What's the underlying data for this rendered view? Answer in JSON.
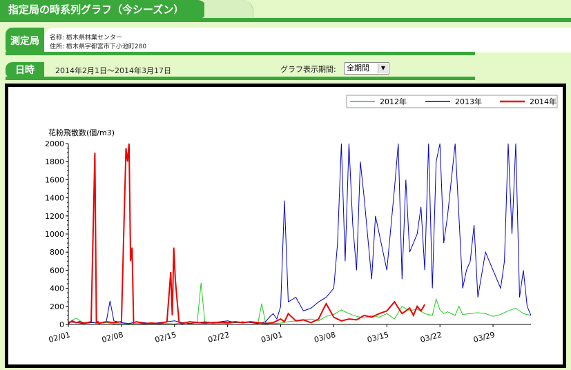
{
  "header": {
    "title": "指定局の時系列グラフ（今シーズン）"
  },
  "station": {
    "tab_label": "測定局",
    "name": "名称: 栃木県林業センター",
    "address": "住所: 栃木県宇都宮市下小池町280"
  },
  "date": {
    "tab_label": "日時",
    "range": "2014年2月1日〜2014年3月17日"
  },
  "period": {
    "label": "グラフ表示期間:",
    "selected": "全期間"
  },
  "colors": {
    "accent": "#3aa83a",
    "s2012": "#22cc22",
    "s2013": "#0000cc",
    "s2014": "#ee0000"
  },
  "chart_data": {
    "type": "line",
    "title": "",
    "ylabel": "花粉飛散数(個/m3)",
    "xlabel": "",
    "ylim": [
      0,
      2000
    ],
    "yticks": [
      0,
      200,
      400,
      600,
      800,
      1000,
      1200,
      1400,
      1600,
      1800,
      2000
    ],
    "xlim": [
      0,
      61
    ],
    "xticks": [
      {
        "day": 0,
        "label": "02/01"
      },
      {
        "day": 7,
        "label": "02/08"
      },
      {
        "day": 14,
        "label": "02/15"
      },
      {
        "day": 21,
        "label": "02/22"
      },
      {
        "day": 28,
        "label": "03/01"
      },
      {
        "day": 35,
        "label": "03/08"
      },
      {
        "day": 42,
        "label": "03/15"
      },
      {
        "day": 49,
        "label": "03/22"
      },
      {
        "day": 56,
        "label": "03/29"
      }
    ],
    "legend_position": "top-right",
    "series": [
      {
        "name": "2012年",
        "x": [
          0,
          1,
          2,
          3,
          4,
          5,
          6,
          7,
          8,
          9,
          10,
          11,
          12,
          13,
          14,
          15,
          17,
          17.5,
          18,
          19,
          20,
          21,
          22,
          23,
          24,
          25,
          25.5,
          26,
          27,
          28,
          29,
          30,
          31,
          32,
          33,
          34,
          35,
          36,
          37,
          38,
          39,
          40,
          41,
          42,
          43,
          44,
          45,
          46,
          47,
          48,
          48.5,
          49,
          49.5,
          50,
          51,
          51.5,
          52,
          53,
          54,
          55,
          56,
          57,
          58,
          59,
          60,
          61
        ],
        "y": [
          20,
          70,
          15,
          30,
          10,
          20,
          5,
          10,
          5,
          10,
          5,
          10,
          5,
          10,
          5,
          20,
          30,
          460,
          25,
          10,
          15,
          10,
          20,
          15,
          25,
          20,
          230,
          20,
          10,
          15,
          30,
          40,
          50,
          60,
          40,
          90,
          110,
          160,
          120,
          90,
          70,
          100,
          80,
          120,
          60,
          200,
          150,
          170,
          120,
          100,
          280,
          160,
          120,
          140,
          100,
          200,
          110,
          120,
          130,
          120,
          90,
          110,
          150,
          180,
          120,
          100
        ]
      },
      {
        "name": "2013年",
        "x": [
          0,
          1,
          2,
          3,
          4,
          5,
          5.5,
          6,
          7,
          8,
          9,
          10,
          11,
          12,
          13,
          14,
          15,
          16,
          17,
          18,
          19,
          20,
          21,
          22,
          23,
          24,
          25,
          26,
          26.5,
          27,
          27.5,
          28,
          28.5,
          29,
          30,
          31,
          32,
          33,
          34,
          35,
          35.5,
          36,
          36.5,
          37,
          37.5,
          38,
          38.5,
          39,
          40,
          40.5,
          41,
          41.5,
          42,
          43,
          43.5,
          44,
          44.5,
          45,
          46,
          46.5,
          47,
          47.5,
          48,
          48.5,
          49,
          49.5,
          50,
          51,
          52,
          52.5,
          53,
          53.5,
          54,
          55,
          56,
          57,
          57.5,
          58,
          58.5,
          59,
          59.5,
          60,
          60.5,
          61
        ],
        "y": [
          30,
          20,
          10,
          20,
          15,
          30,
          260,
          40,
          20,
          10,
          30,
          20,
          10,
          20,
          30,
          40,
          20,
          10,
          20,
          30,
          20,
          30,
          40,
          20,
          30,
          20,
          10,
          30,
          80,
          120,
          60,
          200,
          1370,
          250,
          300,
          150,
          180,
          250,
          300,
          400,
          900,
          2000,
          700,
          2000,
          1100,
          600,
          1800,
          1400,
          500,
          1200,
          1000,
          800,
          600,
          1500,
          2000,
          500,
          1600,
          800,
          1000,
          1300,
          600,
          2000,
          400,
          1800,
          2000,
          900,
          1200,
          2000,
          400,
          600,
          700,
          1100,
          300,
          800,
          600,
          400,
          700,
          2000,
          1000,
          2000,
          300,
          600,
          200,
          100
        ]
      },
      {
        "name": "2014年",
        "x": [
          0,
          0.5,
          1,
          1.5,
          2,
          2.5,
          3,
          3.5,
          3.7,
          3.9,
          4.1,
          4.3,
          5,
          6,
          7,
          7.3,
          7.6,
          7.8,
          8,
          8.2,
          8.4,
          8.6,
          9,
          9.5,
          10,
          11,
          12,
          13,
          13.5,
          13.7,
          13.9,
          14.1,
          14.3,
          14.6,
          15,
          16,
          17,
          18,
          19,
          20,
          21,
          22,
          23,
          24,
          25,
          26,
          27,
          28,
          28.5,
          29,
          29.5,
          30,
          31,
          32,
          33,
          33.5,
          34,
          35,
          36,
          37,
          38,
          39,
          40,
          41,
          42,
          42.5,
          43,
          44,
          45,
          45.5,
          46,
          46.5,
          47
        ],
        "y": [
          10,
          40,
          20,
          30,
          15,
          20,
          30,
          1900,
          20,
          30,
          10,
          20,
          30,
          20,
          30,
          1000,
          1950,
          1800,
          2000,
          700,
          850,
          20,
          30,
          20,
          10,
          15,
          10,
          30,
          580,
          100,
          850,
          500,
          300,
          20,
          10,
          30,
          20,
          15,
          20,
          25,
          20,
          30,
          20,
          30,
          20,
          10,
          20,
          60,
          30,
          120,
          80,
          40,
          50,
          20,
          60,
          150,
          230,
          80,
          40,
          60,
          50,
          100,
          80,
          120,
          150,
          200,
          250,
          120,
          180,
          100,
          200,
          150,
          220
        ]
      }
    ]
  }
}
